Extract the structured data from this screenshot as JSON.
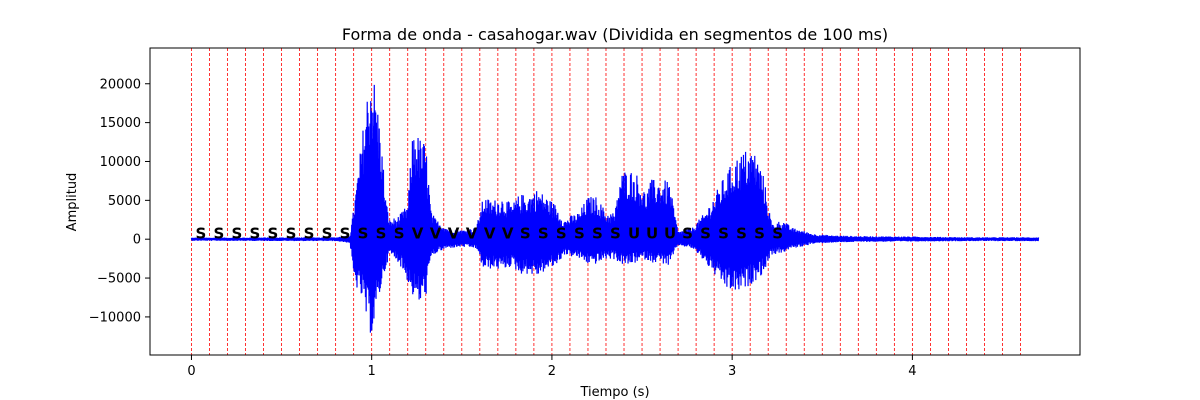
{
  "chart_data": {
    "type": "line",
    "title": "Forma de onda - casahogar.wav (Dividida en segmentos de 100 ms)",
    "xlabel": "Tiempo (s)",
    "ylabel": "Amplitud",
    "xlim": [
      -0.23,
      4.93
    ],
    "ylim": [
      -14900,
      24600
    ],
    "x_ticks": [
      0,
      1,
      2,
      3,
      4
    ],
    "x_tick_labels": [
      "0",
      "1",
      "2",
      "3",
      "4"
    ],
    "y_ticks": [
      -10000,
      -5000,
      0,
      5000,
      10000,
      15000,
      20000
    ],
    "y_tick_labels": [
      "−10000",
      "−5000",
      "0",
      "5000",
      "10000",
      "15000",
      "20000"
    ],
    "grid": false,
    "series_color": "#0000ff",
    "segment_line_color": "#ff0000",
    "segment_lines": [
      0,
      0.1,
      0.2,
      0.3,
      0.4,
      0.5,
      0.6,
      0.7,
      0.8,
      0.9,
      1.0,
      1.1,
      1.2,
      1.3,
      1.4,
      1.5,
      1.6,
      1.7,
      1.8,
      1.9,
      2.0,
      2.1,
      2.2,
      2.3,
      2.4,
      2.5,
      2.6,
      2.7,
      2.8,
      2.9,
      3.0,
      3.1,
      3.2,
      3.3,
      3.4,
      3.5,
      3.6,
      3.7,
      3.8,
      3.9,
      4.0,
      4.1,
      4.2,
      4.3,
      4.4,
      4.5,
      4.6
    ],
    "segment_labels": [
      "S",
      "S",
      "S",
      "S",
      "S",
      "S",
      "S",
      "S",
      "S",
      "S",
      "S",
      "S",
      "V",
      "V",
      "V",
      "V",
      "V",
      "V",
      "S",
      "S",
      "S",
      "S",
      "S",
      "S",
      "U",
      "U",
      "U",
      "S",
      "S",
      "S",
      "S",
      "S",
      "S"
    ],
    "envelope": {
      "t": [
        0.0,
        0.8,
        0.88,
        0.9,
        0.95,
        0.98,
        1.0,
        1.02,
        1.05,
        1.08,
        1.1,
        1.15,
        1.2,
        1.23,
        1.27,
        1.3,
        1.33,
        1.36,
        1.42,
        1.5,
        1.58,
        1.62,
        1.67,
        1.72,
        1.78,
        1.82,
        1.87,
        1.92,
        1.97,
        2.02,
        2.07,
        2.1,
        2.15,
        2.2,
        2.25,
        2.3,
        2.35,
        2.38,
        2.42,
        2.47,
        2.52,
        2.55,
        2.6,
        2.65,
        2.7,
        2.78,
        2.85,
        2.92,
        2.97,
        3.02,
        3.07,
        3.12,
        3.17,
        3.22,
        3.28,
        3.33,
        3.38,
        3.45,
        3.55,
        3.7,
        4.0,
        4.3,
        4.7
      ],
      "max": [
        200,
        250,
        500,
        4000,
        14000,
        20000,
        22500,
        20000,
        14000,
        5000,
        2500,
        3000,
        4500,
        14500,
        13000,
        12500,
        3500,
        2500,
        1500,
        1200,
        1500,
        5500,
        5000,
        5500,
        4500,
        5800,
        5800,
        6500,
        5500,
        4500,
        2500,
        3000,
        3500,
        5500,
        5500,
        3500,
        3500,
        8500,
        9200,
        8500,
        6000,
        7700,
        7700,
        7500,
        1000,
        1500,
        3500,
        6500,
        8700,
        10500,
        11500,
        11700,
        8700,
        2000,
        2500,
        1500,
        1200,
        700,
        500,
        400,
        350,
        250,
        250
      ],
      "min": [
        -200,
        -250,
        -500,
        -5500,
        -8000,
        -11500,
        -12500,
        -10500,
        -6500,
        -3500,
        -2000,
        -3000,
        -5500,
        -7500,
        -8500,
        -7500,
        -2500,
        -1800,
        -1200,
        -1000,
        -1200,
        -4000,
        -3800,
        -4000,
        -3500,
        -4500,
        -4500,
        -4800,
        -4000,
        -3500,
        -2000,
        -2200,
        -2500,
        -3200,
        -3200,
        -2600,
        -2600,
        -3200,
        -3500,
        -3000,
        -2600,
        -3000,
        -3000,
        -3500,
        -800,
        -1200,
        -3000,
        -5200,
        -6500,
        -7000,
        -6500,
        -5500,
        -4500,
        -2000,
        -1800,
        -1200,
        -1000,
        -600,
        -450,
        -350,
        -300,
        -250,
        -250
      ]
    }
  }
}
